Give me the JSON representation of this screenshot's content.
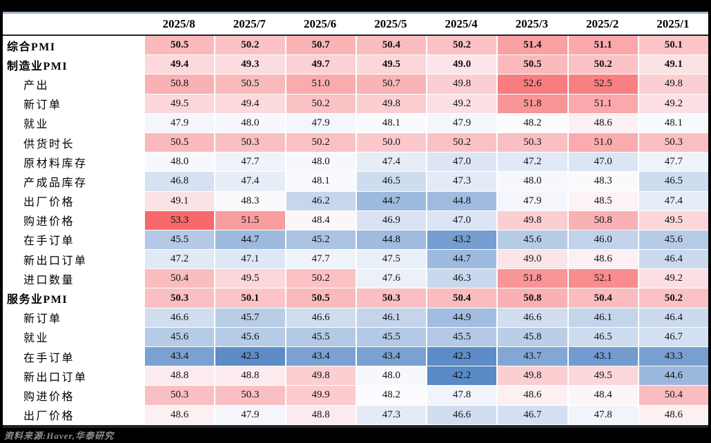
{
  "chart_data": {
    "type": "heatmap",
    "title": "",
    "columns": [
      "2025/8",
      "2025/7",
      "2025/6",
      "2025/5",
      "2025/4",
      "2025/3",
      "2025/2",
      "2025/1"
    ],
    "rows": [
      {
        "label": "综合PMI",
        "bold": true,
        "indent": false,
        "values": [
          50.5,
          50.2,
          50.7,
          50.4,
          50.2,
          51.4,
          51.1,
          50.1
        ]
      },
      {
        "label": "制造业PMI",
        "bold": true,
        "indent": false,
        "values": [
          49.4,
          49.3,
          49.7,
          49.5,
          49.0,
          50.5,
          50.2,
          49.1
        ]
      },
      {
        "label": "产出",
        "bold": false,
        "indent": true,
        "values": [
          50.8,
          50.5,
          51.0,
          50.7,
          49.8,
          52.6,
          52.5,
          49.8
        ]
      },
      {
        "label": "新订单",
        "bold": false,
        "indent": true,
        "values": [
          49.5,
          49.4,
          50.2,
          49.8,
          49.2,
          51.8,
          51.1,
          49.2
        ]
      },
      {
        "label": "就业",
        "bold": false,
        "indent": true,
        "values": [
          47.9,
          48.0,
          47.9,
          48.1,
          47.9,
          48.2,
          48.6,
          48.1
        ]
      },
      {
        "label": "供货时长",
        "bold": false,
        "indent": true,
        "values": [
          50.5,
          50.3,
          50.2,
          50.0,
          50.2,
          50.3,
          51.0,
          50.3
        ]
      },
      {
        "label": "原材料库存",
        "bold": false,
        "indent": true,
        "values": [
          48.0,
          47.7,
          48.0,
          47.4,
          47.0,
          47.2,
          47.0,
          47.7
        ]
      },
      {
        "label": "产成品库存",
        "bold": false,
        "indent": true,
        "values": [
          46.8,
          47.4,
          48.1,
          46.5,
          47.3,
          48.0,
          48.3,
          46.5
        ]
      },
      {
        "label": "出厂价格",
        "bold": false,
        "indent": true,
        "values": [
          49.1,
          48.3,
          46.2,
          44.7,
          44.8,
          47.9,
          48.5,
          47.4
        ]
      },
      {
        "label": "购进价格",
        "bold": false,
        "indent": true,
        "values": [
          53.3,
          51.5,
          48.4,
          46.9,
          47.0,
          49.8,
          50.8,
          49.5
        ]
      },
      {
        "label": "在手订单",
        "bold": false,
        "indent": true,
        "values": [
          45.5,
          44.7,
          45.2,
          44.8,
          43.2,
          45.6,
          46.0,
          45.6
        ]
      },
      {
        "label": "新出口订单",
        "bold": false,
        "indent": true,
        "values": [
          47.2,
          47.1,
          47.7,
          47.5,
          44.7,
          49.0,
          48.6,
          46.4
        ]
      },
      {
        "label": "进口数量",
        "bold": false,
        "indent": true,
        "values": [
          50.4,
          49.5,
          50.2,
          47.6,
          46.3,
          51.8,
          52.1,
          49.2
        ]
      },
      {
        "label": "服务业PMI",
        "bold": true,
        "indent": false,
        "values": [
          50.3,
          50.1,
          50.5,
          50.3,
          50.4,
          50.8,
          50.4,
          50.2
        ]
      },
      {
        "label": "新订单",
        "bold": false,
        "indent": true,
        "values": [
          46.6,
          45.7,
          46.6,
          46.1,
          44.9,
          46.6,
          46.1,
          46.4
        ]
      },
      {
        "label": "就业",
        "bold": false,
        "indent": true,
        "values": [
          45.6,
          45.6,
          45.5,
          45.5,
          45.5,
          45.8,
          46.5,
          46.7
        ]
      },
      {
        "label": "在手订单",
        "bold": false,
        "indent": true,
        "values": [
          43.4,
          42.3,
          43.4,
          43.4,
          42.3,
          43.7,
          43.1,
          43.3
        ]
      },
      {
        "label": "新出口订单",
        "bold": false,
        "indent": true,
        "values": [
          48.8,
          48.8,
          49.8,
          48.0,
          42.2,
          49.8,
          49.5,
          44.6
        ]
      },
      {
        "label": "购进价格",
        "bold": false,
        "indent": true,
        "values": [
          50.3,
          50.3,
          49.9,
          48.2,
          47.8,
          48.6,
          48.4,
          50.4
        ]
      },
      {
        "label": "出厂价格",
        "bold": false,
        "indent": true,
        "values": [
          48.6,
          47.9,
          48.8,
          47.3,
          46.6,
          46.7,
          47.8,
          48.6
        ]
      }
    ],
    "colorscale": {
      "min": 42.2,
      "mid": 48.2,
      "max": 53.3,
      "min_color": "#5A8AC6",
      "mid_color": "#FCFCFF",
      "max_color": "#F8696B"
    },
    "legend_position": "none",
    "grid": false
  },
  "footer": {
    "source_note": "资料来源:Haver,华泰研究"
  },
  "colors": {
    "page_bg": "#000000",
    "card_bg": "#ffffff",
    "top_rule": "#a6b2c9",
    "dark_rule": "#20222c",
    "footer_text": "#8f8f8f"
  }
}
